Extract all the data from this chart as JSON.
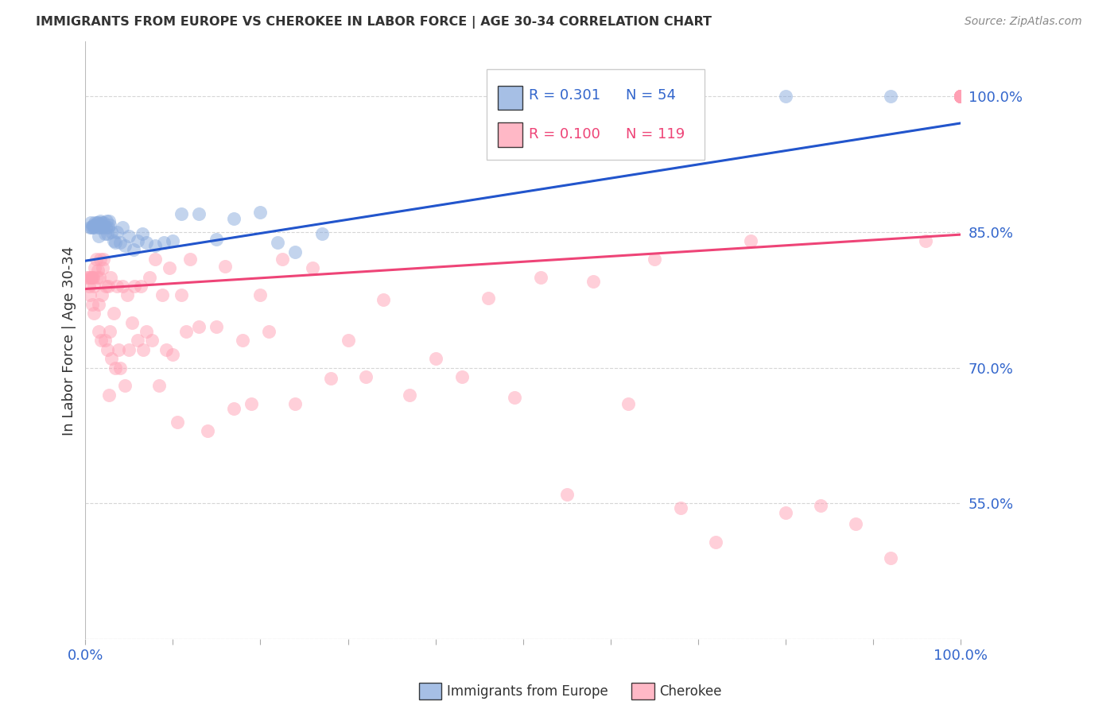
{
  "title": "IMMIGRANTS FROM EUROPE VS CHEROKEE IN LABOR FORCE | AGE 30-34 CORRELATION CHART",
  "source": "Source: ZipAtlas.com",
  "ylabel_left": "In Labor Force | Age 30-34",
  "legend_blue_label": "Immigrants from Europe",
  "legend_pink_label": "Cherokee",
  "blue_color": "#88AADD",
  "pink_color": "#FFA0B4",
  "trend_blue_color": "#2255CC",
  "trend_pink_color": "#EE4477",
  "dashed_blue_color": "#88AADD",
  "background_color": "#FFFFFF",
  "grid_color": "#CCCCCC",
  "axis_tick_color": "#3366CC",
  "title_color": "#333333",
  "source_color": "#888888",
  "yticks_right": [
    0.55,
    0.7,
    0.85,
    1.0
  ],
  "ytick_labels_right": [
    "55.0%",
    "70.0%",
    "85.0%",
    "100.0%"
  ],
  "xlim": [
    0.0,
    1.0
  ],
  "ylim": [
    0.4,
    1.06
  ],
  "blue_trend_y0": 0.818,
  "blue_trend_y1": 0.97,
  "pink_trend_y0": 0.787,
  "pink_trend_y1": 0.847,
  "blue_scatter_x": [
    0.005,
    0.006,
    0.007,
    0.008,
    0.009,
    0.01,
    0.01,
    0.011,
    0.012,
    0.013,
    0.014,
    0.015,
    0.015,
    0.016,
    0.017,
    0.018,
    0.019,
    0.02,
    0.021,
    0.022,
    0.023,
    0.024,
    0.025,
    0.026,
    0.027,
    0.028,
    0.03,
    0.032,
    0.034,
    0.036,
    0.04,
    0.042,
    0.045,
    0.05,
    0.055,
    0.06,
    0.065,
    0.07,
    0.08,
    0.09,
    0.1,
    0.11,
    0.13,
    0.15,
    0.17,
    0.2,
    0.22,
    0.24,
    0.27,
    0.48,
    0.55,
    0.65,
    0.8,
    0.92
  ],
  "blue_scatter_y": [
    0.855,
    0.86,
    0.855,
    0.855,
    0.857,
    0.855,
    0.858,
    0.86,
    0.858,
    0.86,
    0.86,
    0.845,
    0.855,
    0.855,
    0.862,
    0.858,
    0.86,
    0.855,
    0.86,
    0.848,
    0.855,
    0.862,
    0.848,
    0.855,
    0.862,
    0.858,
    0.85,
    0.84,
    0.838,
    0.85,
    0.838,
    0.855,
    0.835,
    0.845,
    0.83,
    0.84,
    0.848,
    0.838,
    0.835,
    0.838,
    0.84,
    0.87,
    0.87,
    0.842,
    0.865,
    0.872,
    0.838,
    0.828,
    0.848,
    1.0,
    0.972,
    1.0,
    1.0,
    1.0
  ],
  "pink_scatter_x": [
    0.002,
    0.003,
    0.004,
    0.005,
    0.006,
    0.007,
    0.008,
    0.008,
    0.009,
    0.01,
    0.01,
    0.011,
    0.012,
    0.013,
    0.014,
    0.015,
    0.015,
    0.016,
    0.017,
    0.018,
    0.019,
    0.02,
    0.021,
    0.022,
    0.023,
    0.025,
    0.026,
    0.027,
    0.028,
    0.029,
    0.03,
    0.032,
    0.034,
    0.036,
    0.038,
    0.04,
    0.042,
    0.045,
    0.048,
    0.05,
    0.053,
    0.056,
    0.06,
    0.063,
    0.066,
    0.07,
    0.073,
    0.076,
    0.08,
    0.084,
    0.088,
    0.092,
    0.096,
    0.1,
    0.105,
    0.11,
    0.115,
    0.12,
    0.13,
    0.14,
    0.15,
    0.16,
    0.17,
    0.18,
    0.19,
    0.2,
    0.21,
    0.225,
    0.24,
    0.26,
    0.28,
    0.3,
    0.32,
    0.34,
    0.37,
    0.4,
    0.43,
    0.46,
    0.49,
    0.52,
    0.55,
    0.58,
    0.62,
    0.65,
    0.68,
    0.72,
    0.76,
    0.8,
    0.84,
    0.88,
    0.92,
    0.96,
    1.0,
    1.0,
    1.0,
    1.0,
    1.0,
    1.0,
    1.0,
    1.0,
    1.0,
    1.0,
    1.0,
    1.0,
    1.0,
    1.0,
    1.0,
    1.0,
    1.0,
    1.0,
    1.0,
    1.0,
    1.0,
    1.0,
    1.0
  ],
  "pink_scatter_y": [
    0.8,
    0.8,
    0.79,
    0.78,
    0.8,
    0.8,
    0.77,
    0.8,
    0.8,
    0.76,
    0.79,
    0.81,
    0.82,
    0.8,
    0.808,
    0.74,
    0.77,
    0.8,
    0.82,
    0.73,
    0.78,
    0.81,
    0.82,
    0.73,
    0.79,
    0.72,
    0.79,
    0.67,
    0.74,
    0.8,
    0.71,
    0.76,
    0.7,
    0.79,
    0.72,
    0.7,
    0.79,
    0.68,
    0.78,
    0.72,
    0.75,
    0.79,
    0.73,
    0.79,
    0.72,
    0.74,
    0.8,
    0.73,
    0.82,
    0.68,
    0.78,
    0.72,
    0.81,
    0.715,
    0.64,
    0.78,
    0.74,
    0.82,
    0.745,
    0.63,
    0.745,
    0.812,
    0.655,
    0.73,
    0.66,
    0.78,
    0.74,
    0.82,
    0.66,
    0.81,
    0.688,
    0.73,
    0.69,
    0.775,
    0.67,
    0.71,
    0.69,
    0.777,
    0.667,
    0.8,
    0.56,
    0.795,
    0.66,
    0.82,
    0.545,
    0.507,
    0.84,
    0.54,
    0.548,
    0.528,
    0.49,
    0.84,
    1.0,
    1.0,
    1.0,
    1.0,
    1.0,
    1.0,
    1.0,
    1.0,
    1.0,
    1.0,
    1.0,
    1.0,
    1.0,
    1.0,
    1.0,
    1.0,
    1.0,
    1.0,
    1.0,
    1.0,
    1.0,
    1.0,
    1.0
  ]
}
